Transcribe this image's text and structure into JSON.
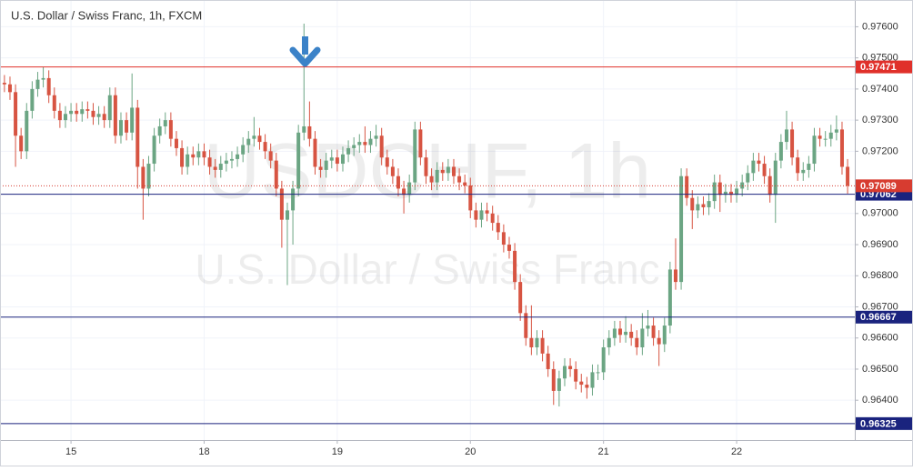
{
  "chart_data": {
    "type": "candlestick",
    "title": "U.S. Dollar / Swiss Franc, 1h, FXCM",
    "watermark": "USDCHF, 1h",
    "watermark_subtitle": "U.S. Dollar / Swiss Franc",
    "up_color": "#6ba583",
    "down_color": "#d75442",
    "ylim": [
      0.96272,
      0.97686
    ],
    "xlim": [
      -0.8,
      153.3
    ],
    "yticks": [
      {
        "value": 0.976,
        "label": "0.97600"
      },
      {
        "value": 0.975,
        "label": "0.97500"
      },
      {
        "value": 0.974,
        "label": "0.97400"
      },
      {
        "value": 0.973,
        "label": "0.97300"
      },
      {
        "value": 0.972,
        "label": "0.97200"
      },
      {
        "value": 0.97,
        "label": "0.97000"
      },
      {
        "value": 0.969,
        "label": "0.96900"
      },
      {
        "value": 0.968,
        "label": "0.96800"
      },
      {
        "value": 0.967,
        "label": "0.96700"
      },
      {
        "value": 0.966,
        "label": "0.96600"
      },
      {
        "value": 0.965,
        "label": "0.96500"
      },
      {
        "value": 0.964,
        "label": "0.96400"
      }
    ],
    "xticks": [
      {
        "value": 12,
        "label": "15"
      },
      {
        "value": 36,
        "label": "18"
      },
      {
        "value": 60,
        "label": "19"
      },
      {
        "value": 84,
        "label": "20"
      },
      {
        "value": 108,
        "label": "21"
      },
      {
        "value": 132,
        "label": "22"
      }
    ],
    "grid": true,
    "levels": [
      {
        "value": 0.97471,
        "color": "#e0302a"
      },
      {
        "value": 0.97062,
        "color": "#1a237e"
      },
      {
        "value": 0.96667,
        "color": "#1a237e"
      },
      {
        "value": 0.96325,
        "color": "#1a237e"
      }
    ],
    "last_price_color": "#d73c30",
    "open": [
      0.9742,
      0.97415,
      0.9739,
      0.9725,
      0.972,
      0.9733,
      0.974,
      0.9743,
      0.97435,
      0.9738,
      0.9733,
      0.973,
      0.9732,
      0.9733,
      0.9732,
      0.97335,
      0.9733,
      0.9731,
      0.9732,
      0.973,
      0.9738,
      0.9725,
      0.973,
      0.9726,
      0.9734,
      0.9715,
      0.9708,
      0.9716,
      0.9725,
      0.9728,
      0.973,
      0.9724,
      0.9721,
      0.9715,
      0.9719,
      0.9718,
      0.972,
      0.9718,
      0.9715,
      0.9714,
      0.9716,
      0.9717,
      0.97175,
      0.9719,
      0.9722,
      0.9724,
      0.9725,
      0.9723,
      0.972,
      0.9717,
      0.9708,
      0.9698,
      0.9701,
      0.9708,
      0.9726,
      0.9728,
      0.9724,
      0.9715,
      0.9714,
      0.9717,
      0.9718,
      0.9716,
      0.9719,
      0.9721,
      0.9722,
      0.9723,
      0.9722,
      0.9724,
      0.9725,
      0.9718,
      0.9715,
      0.9712,
      0.9708,
      0.9706,
      0.971,
      0.9727,
      0.9718,
      0.9712,
      0.971,
      0.9714,
      0.9713,
      0.9715,
      0.9712,
      0.971,
      0.9709,
      0.9701,
      0.9698,
      0.9701,
      0.97,
      0.9697,
      0.9694,
      0.969,
      0.9688,
      0.9678,
      0.9668,
      0.966,
      0.9657,
      0.966,
      0.9655,
      0.965,
      0.9643,
      0.9647,
      0.9651,
      0.965,
      0.9646,
      0.9645,
      0.9644,
      0.9649,
      0.9649,
      0.9657,
      0.966,
      0.9663,
      0.9661,
      0.9662,
      0.966,
      0.9657,
      0.9663,
      0.9664,
      0.966,
      0.9658,
      0.9664,
      0.9682,
      0.9678,
      0.9712,
      0.9705,
      0.9701,
      0.9703,
      0.9702,
      0.9704,
      0.971,
      0.9706,
      0.9707,
      0.9706,
      0.9708,
      0.971,
      0.9713,
      0.9717,
      0.9716,
      0.9712,
      0.9706,
      0.9717,
      0.9723,
      0.9727,
      0.9718,
      0.9713,
      0.9714,
      0.9716,
      0.9725,
      0.9724,
      0.9724,
      0.9726,
      0.9727,
      0.9715
    ],
    "high": [
      0.97445,
      0.9744,
      0.97415,
      0.97275,
      0.97355,
      0.97425,
      0.97455,
      0.9747,
      0.9746,
      0.97405,
      0.97355,
      0.97345,
      0.97355,
      0.97355,
      0.9736,
      0.9736,
      0.97355,
      0.97345,
      0.97345,
      0.97405,
      0.97405,
      0.97325,
      0.97325,
      0.9745,
      0.97365,
      0.97175,
      0.97185,
      0.97275,
      0.97305,
      0.97325,
      0.97325,
      0.97265,
      0.97235,
      0.97215,
      0.97215,
      0.97225,
      0.97225,
      0.97205,
      0.97175,
      0.97185,
      0.97195,
      0.972,
      0.97215,
      0.97245,
      0.97265,
      0.9731,
      0.97275,
      0.97255,
      0.97225,
      0.97195,
      0.97105,
      0.97035,
      0.97105,
      0.97285,
      0.9761,
      0.9736,
      0.97265,
      0.97175,
      0.97195,
      0.97205,
      0.97205,
      0.97215,
      0.97235,
      0.97245,
      0.97255,
      0.9728,
      0.97265,
      0.97285,
      0.97275,
      0.97205,
      0.97175,
      0.97145,
      0.97105,
      0.97125,
      0.97295,
      0.97295,
      0.97205,
      0.97145,
      0.97165,
      0.97165,
      0.97175,
      0.97175,
      0.97145,
      0.97125,
      0.97115,
      0.97035,
      0.97035,
      0.97035,
      0.97025,
      0.96995,
      0.96965,
      0.96925,
      0.96905,
      0.96805,
      0.96705,
      0.96705,
      0.96625,
      0.96625,
      0.96575,
      0.96525,
      0.96495,
      0.96535,
      0.96535,
      0.96525,
      0.96485,
      0.96475,
      0.96515,
      0.96515,
      0.96595,
      0.96625,
      0.96655,
      0.96655,
      0.9667,
      0.96645,
      0.96625,
      0.9668,
      0.9669,
      0.96665,
      0.96625,
      0.96665,
      0.96845,
      0.9692,
      0.97145,
      0.97145,
      0.97075,
      0.97055,
      0.97055,
      0.97065,
      0.97125,
      0.97125,
      0.97095,
      0.97095,
      0.97105,
      0.97125,
      0.97155,
      0.97195,
      0.97195,
      0.97185,
      0.97145,
      0.97195,
      0.97255,
      0.9733,
      0.97295,
      0.97205,
      0.97165,
      0.97185,
      0.97275,
      0.97275,
      0.97265,
      0.97285,
      0.97315,
      0.97295,
      0.97175
    ],
    "low": [
      0.9739,
      0.97365,
      0.9715,
      0.97175,
      0.97175,
      0.97305,
      0.97375,
      0.97405,
      0.97355,
      0.97305,
      0.97275,
      0.97275,
      0.97295,
      0.97295,
      0.97295,
      0.97305,
      0.97285,
      0.97285,
      0.97275,
      0.97275,
      0.97225,
      0.97225,
      0.97235,
      0.97235,
      0.9708,
      0.9698,
      0.97055,
      0.97135,
      0.97225,
      0.97255,
      0.97215,
      0.97185,
      0.97125,
      0.97125,
      0.97155,
      0.97155,
      0.97155,
      0.97125,
      0.97115,
      0.97115,
      0.97135,
      0.97145,
      0.9715,
      0.97165,
      0.97195,
      0.97215,
      0.97205,
      0.97175,
      0.97145,
      0.97055,
      0.9689,
      0.9677,
      0.969,
      0.97055,
      0.97235,
      0.97215,
      0.97125,
      0.97115,
      0.97115,
      0.97145,
      0.97135,
      0.97135,
      0.97165,
      0.97185,
      0.97195,
      0.97195,
      0.97195,
      0.97215,
      0.97155,
      0.97125,
      0.97095,
      0.97055,
      0.97,
      0.97035,
      0.97075,
      0.97155,
      0.97095,
      0.97075,
      0.97075,
      0.97105,
      0.97105,
      0.97095,
      0.97075,
      0.97065,
      0.96985,
      0.96955,
      0.96955,
      0.96975,
      0.96945,
      0.96915,
      0.96875,
      0.96855,
      0.96755,
      0.96655,
      0.96575,
      0.96545,
      0.96545,
      0.96525,
      0.96475,
      0.96385,
      0.9638,
      0.96445,
      0.96475,
      0.96435,
      0.96425,
      0.96405,
      0.96415,
      0.96465,
      0.96465,
      0.96545,
      0.96575,
      0.96585,
      0.96585,
      0.96575,
      0.96545,
      0.96545,
      0.96605,
      0.96575,
      0.9651,
      0.96555,
      0.96615,
      0.96755,
      0.96755,
      0.97025,
      0.9695,
      0.96985,
      0.96995,
      0.96995,
      0.97015,
      0.97005,
      0.97035,
      0.97035,
      0.97035,
      0.97055,
      0.97075,
      0.97105,
      0.97135,
      0.97095,
      0.97035,
      0.9697,
      0.97145,
      0.97205,
      0.97155,
      0.97105,
      0.97105,
      0.97115,
      0.97135,
      0.97215,
      0.97215,
      0.97215,
      0.97235,
      0.97125,
      0.97064
    ],
    "close": [
      0.97415,
      0.9739,
      0.9725,
      0.972,
      0.9733,
      0.974,
      0.9743,
      0.97435,
      0.9738,
      0.9733,
      0.973,
      0.9732,
      0.9733,
      0.9732,
      0.97335,
      0.9733,
      0.9731,
      0.9732,
      0.973,
      0.9738,
      0.9725,
      0.973,
      0.9726,
      0.9734,
      0.9715,
      0.9708,
      0.9716,
      0.9725,
      0.9728,
      0.973,
      0.9724,
      0.9721,
      0.9715,
      0.9719,
      0.9718,
      0.972,
      0.9718,
      0.9715,
      0.9714,
      0.9716,
      0.9717,
      0.97175,
      0.9719,
      0.9722,
      0.9724,
      0.9725,
      0.9723,
      0.972,
      0.9717,
      0.9708,
      0.9698,
      0.9701,
      0.9708,
      0.9726,
      0.9728,
      0.9724,
      0.9715,
      0.9714,
      0.9717,
      0.9718,
      0.9716,
      0.9719,
      0.9721,
      0.9722,
      0.9723,
      0.9722,
      0.9724,
      0.9725,
      0.9718,
      0.9715,
      0.9712,
      0.9708,
      0.9706,
      0.971,
      0.9727,
      0.9718,
      0.9712,
      0.971,
      0.9714,
      0.9713,
      0.9715,
      0.9712,
      0.971,
      0.9709,
      0.9701,
      0.9698,
      0.9701,
      0.97,
      0.9697,
      0.9694,
      0.969,
      0.9688,
      0.9678,
      0.9668,
      0.966,
      0.9657,
      0.966,
      0.9655,
      0.965,
      0.9643,
      0.9647,
      0.9651,
      0.965,
      0.9646,
      0.9645,
      0.9644,
      0.9649,
      0.9649,
      0.9657,
      0.966,
      0.9663,
      0.9661,
      0.9662,
      0.966,
      0.9657,
      0.9663,
      0.9664,
      0.966,
      0.9658,
      0.9664,
      0.9682,
      0.9678,
      0.9712,
      0.9705,
      0.9701,
      0.9703,
      0.9702,
      0.9704,
      0.971,
      0.9706,
      0.9707,
      0.9706,
      0.9708,
      0.971,
      0.9713,
      0.9717,
      0.9716,
      0.9712,
      0.9706,
      0.9717,
      0.9723,
      0.9727,
      0.9718,
      0.9713,
      0.9714,
      0.9716,
      0.9725,
      0.9724,
      0.9724,
      0.9726,
      0.9727,
      0.9715,
      0.97089
    ]
  }
}
